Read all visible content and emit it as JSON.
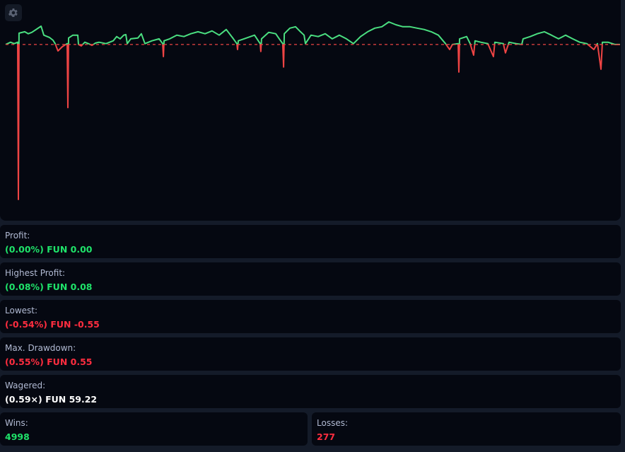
{
  "chart_data": {
    "type": "line",
    "xlim": [
      0,
      5275
    ],
    "ylim": [
      -0.56,
      0.09
    ],
    "baseline": 0,
    "colors": {
      "positive": "#4ade80",
      "negative": "#ef4444",
      "baseline": "#ef4444"
    },
    "x": [
      0,
      42,
      73,
      103,
      109,
      115,
      164,
      194,
      225,
      304,
      328,
      376,
      407,
      425,
      449,
      486,
      528,
      534,
      540,
      577,
      619,
      625,
      649,
      680,
      710,
      741,
      771,
      801,
      862,
      923,
      953,
      983,
      1014,
      1032,
      1044,
      1074,
      1135,
      1165,
      1196,
      1256,
      1317,
      1348,
      1354,
      1360,
      1408,
      1469,
      1530,
      1590,
      1651,
      1712,
      1772,
      1833,
      1894,
      1955,
      1985,
      1991,
      1997,
      2046,
      2137,
      2185,
      2191,
      2197,
      2258,
      2319,
      2349,
      2379,
      2386,
      2392,
      2440,
      2489,
      2531,
      2562,
      2574,
      2622,
      2683,
      2744,
      2804,
      2865,
      2926,
      2986,
      3047,
      3108,
      3169,
      3230,
      3290,
      3351,
      3411,
      3472,
      3533,
      3593,
      3654,
      3715,
      3776,
      3812,
      3836,
      3885,
      3891,
      3897,
      3958,
      3988,
      4018,
      4030,
      4079,
      4140,
      4188,
      4200,
      4273,
      4291,
      4322,
      4383,
      4431,
      4443,
      4504,
      4565,
      4625,
      4686,
      4747,
      4807,
      4868,
      4929,
      4990,
      5050,
      5081,
      5111,
      5123,
      5172,
      5232,
      5275
    ],
    "y": [
      0,
      0.008,
      0.003,
      0.008,
      -0.55,
      0.04,
      0.045,
      0.038,
      0.043,
      0.065,
      0.033,
      0.025,
      0.015,
      0.003,
      -0.023,
      -0.008,
      0.003,
      -0.224,
      0.023,
      0.033,
      0.033,
      0,
      -0.005,
      0.008,
      0.003,
      -0.003,
      0.005,
      0.008,
      0.003,
      0.013,
      0.028,
      0.02,
      0.033,
      0.035,
      0.003,
      0.02,
      0.023,
      0.038,
      0.003,
      0.013,
      0.02,
      0.003,
      -0.043,
      0.013,
      0.02,
      0.033,
      0.028,
      0.038,
      0.045,
      0.038,
      0.048,
      0.033,
      0.053,
      0.02,
      0.003,
      -0.018,
      0.013,
      0.02,
      0.033,
      0.003,
      -0.025,
      0.02,
      0.043,
      0.038,
      0.02,
      0.003,
      -0.08,
      0.038,
      0.058,
      0.063,
      0.045,
      0.033,
      0.003,
      0.033,
      0.028,
      0.038,
      0.02,
      0.033,
      0.02,
      0.003,
      0.028,
      0.045,
      0.058,
      0.063,
      0.08,
      0.07,
      0.063,
      0.063,
      0.058,
      0.053,
      0.045,
      0.033,
      0.003,
      -0.018,
      0,
      0.003,
      -0.098,
      0.02,
      0.028,
      0.003,
      -0.038,
      0.013,
      0.008,
      0.003,
      -0.043,
      0.008,
      0.003,
      -0.03,
      0.008,
      0.003,
      0,
      0.02,
      0.028,
      0.038,
      0.045,
      0.033,
      0.02,
      0.033,
      0.02,
      0.008,
      0.003,
      -0.018,
      0.003,
      -0.088,
      0.008,
      0.008,
      0,
      0
    ]
  },
  "settings_icon": "gear-icon",
  "stats": {
    "profit": {
      "label": "Profit:",
      "value": "(0.00%) FUN 0.00"
    },
    "highest_profit": {
      "label": "Highest Profit:",
      "value": "(0.08%) FUN 0.08"
    },
    "lowest": {
      "label": "Lowest:",
      "value": "(-0.54%) FUN -0.55"
    },
    "max_drawdown": {
      "label": "Max. Drawdown:",
      "value": "(0.55%) FUN 0.55"
    },
    "wagered": {
      "label": "Wagered:",
      "value": "(0.59×) FUN 59.22"
    },
    "wins": {
      "label": "Wins:",
      "value": "4998"
    },
    "losses": {
      "label": "Losses:",
      "value": "277"
    }
  }
}
